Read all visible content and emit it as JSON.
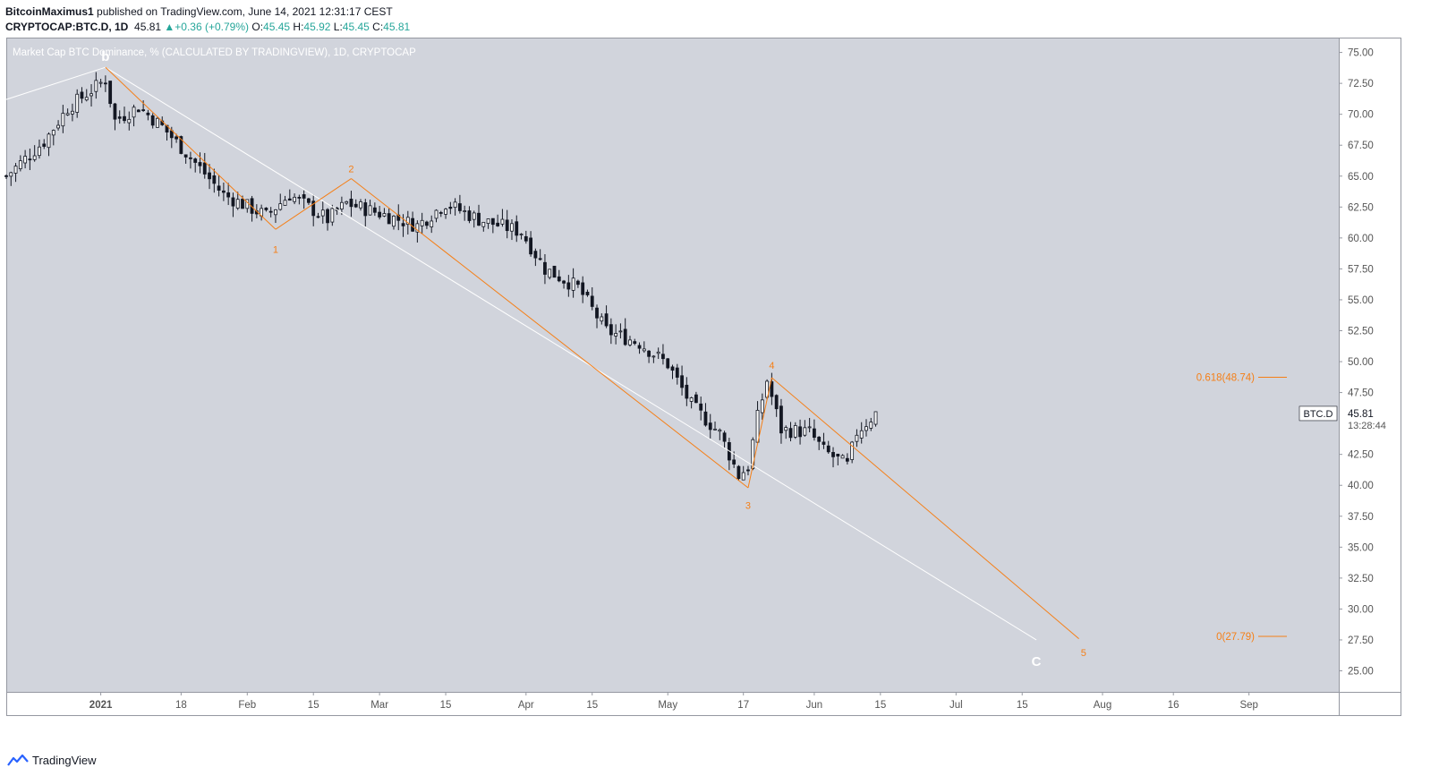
{
  "header": {
    "author": "BitcoinMaximus1",
    "published_text": "published on TradingView.com, June 14, 2021 12:31:17 CEST",
    "symbol": "CRYPTOCAP:BTC.D, 1D",
    "price": "45.81",
    "change": "+0.36 (+0.79%)",
    "o_label": "O:",
    "o_value": "45.45",
    "h_label": "H:",
    "h_value": "45.92",
    "l_label": "L:",
    "l_value": "45.45",
    "c_label": "C:",
    "c_value": "45.81",
    "up_arrow": "▲"
  },
  "footer": {
    "brand": "TradingView",
    "logo_icon": "tradingview-logo-icon"
  },
  "colors": {
    "background": "#d1d4dc",
    "page": "#ffffff",
    "candle": "#131722",
    "candle_up_fill": "#ffffff",
    "orange": "#f57f17",
    "white_line": "#ffffff",
    "green": "#26a69a"
  },
  "chart_data": {
    "type": "candlestick",
    "title": "Market Cap BTC Dominance, % (CALCULATED BY TRADINGVIEW), 1D, CRYPTOCAP",
    "symbol_tag": "BTC.D",
    "last_value": "45.81",
    "countdown": "13:28:44",
    "x_ticks": [
      {
        "label": "2021",
        "date": "2021-01-01"
      },
      {
        "label": "18",
        "date": "2021-01-18"
      },
      {
        "label": "Feb",
        "date": "2021-02-01"
      },
      {
        "label": "15",
        "date": "2021-02-15"
      },
      {
        "label": "Mar",
        "date": "2021-03-01"
      },
      {
        "label": "15",
        "date": "2021-03-15"
      },
      {
        "label": "Apr",
        "date": "2021-04-01"
      },
      {
        "label": "15",
        "date": "2021-04-15"
      },
      {
        "label": "May",
        "date": "2021-05-01"
      },
      {
        "label": "17",
        "date": "2021-05-17"
      },
      {
        "label": "Jun",
        "date": "2021-06-01"
      },
      {
        "label": "15",
        "date": "2021-06-15"
      },
      {
        "label": "Jul",
        "date": "2021-07-01"
      },
      {
        "label": "15",
        "date": "2021-07-15"
      },
      {
        "label": "Aug",
        "date": "2021-08-01"
      },
      {
        "label": "16",
        "date": "2021-08-16"
      },
      {
        "label": "Sep",
        "date": "2021-09-01"
      }
    ],
    "y_ticks": [
      "75.00",
      "72.50",
      "70.00",
      "67.50",
      "65.00",
      "62.50",
      "60.00",
      "57.50",
      "55.00",
      "52.50",
      "50.00",
      "47.50",
      "45.00",
      "42.50",
      "40.00",
      "37.50",
      "35.00",
      "32.50",
      "30.00",
      "27.50",
      "25.00"
    ],
    "ylim": [
      23.3,
      76.2
    ],
    "x_domain": [
      "2020-12-12",
      "2021-09-20"
    ],
    "close_path": [
      {
        "date": "2020-12-12",
        "value": 65.0
      },
      {
        "date": "2020-12-20",
        "value": 67.8
      },
      {
        "date": "2020-12-25",
        "value": 70.5
      },
      {
        "date": "2021-01-02",
        "value": 72.8
      },
      {
        "date": "2021-01-04",
        "value": 69.5
      },
      {
        "date": "2021-01-09",
        "value": 70.6
      },
      {
        "date": "2021-01-14",
        "value": 69.0
      },
      {
        "date": "2021-01-20",
        "value": 66.5
      },
      {
        "date": "2021-01-27",
        "value": 63.5
      },
      {
        "date": "2021-02-05",
        "value": 61.8
      },
      {
        "date": "2021-02-10",
        "value": 63.5
      },
      {
        "date": "2021-02-18",
        "value": 61.5
      },
      {
        "date": "2021-02-22",
        "value": 62.8
      },
      {
        "date": "2021-03-01",
        "value": 62.0
      },
      {
        "date": "2021-03-09",
        "value": 61.0
      },
      {
        "date": "2021-03-15",
        "value": 62.8
      },
      {
        "date": "2021-03-22",
        "value": 61.5
      },
      {
        "date": "2021-03-31",
        "value": 60.5
      },
      {
        "date": "2021-04-05",
        "value": 57.5
      },
      {
        "date": "2021-04-12",
        "value": 56.0
      },
      {
        "date": "2021-04-18",
        "value": 52.5
      },
      {
        "date": "2021-04-25",
        "value": 51.5
      },
      {
        "date": "2021-05-01",
        "value": 49.8
      },
      {
        "date": "2021-05-06",
        "value": 46.5
      },
      {
        "date": "2021-05-12",
        "value": 44.2
      },
      {
        "date": "2021-05-16",
        "value": 40.8
      },
      {
        "date": "2021-05-18",
        "value": 41.5
      },
      {
        "date": "2021-05-20",
        "value": 45.5
      },
      {
        "date": "2021-05-22",
        "value": 48.5
      },
      {
        "date": "2021-05-25",
        "value": 44.5
      },
      {
        "date": "2021-05-31",
        "value": 44.3
      },
      {
        "date": "2021-06-03",
        "value": 42.8
      },
      {
        "date": "2021-06-08",
        "value": 41.6
      },
      {
        "date": "2021-06-10",
        "value": 44.3
      },
      {
        "date": "2021-06-14",
        "value": 45.81
      }
    ],
    "wave_labels": [
      {
        "label": "b",
        "date": "2021-01-02",
        "value": 74.6,
        "color": "white"
      },
      {
        "label": "1",
        "date": "2021-02-07",
        "value": 59.1,
        "color": "orange"
      },
      {
        "label": "2",
        "date": "2021-02-23",
        "value": 65.6,
        "color": "orange"
      },
      {
        "label": "3",
        "date": "2021-05-18",
        "value": 38.4,
        "color": "orange"
      },
      {
        "label": "4",
        "date": "2021-05-23",
        "value": 49.7,
        "color": "orange"
      },
      {
        "label": "C",
        "date": "2021-07-18",
        "value": 25.7,
        "color": "white"
      },
      {
        "label": "5",
        "date": "2021-07-28",
        "value": 26.5,
        "color": "orange"
      }
    ],
    "orange_wave_lines": [
      {
        "from": {
          "date": "2021-01-02",
          "value": 73.8
        },
        "to": {
          "date": "2021-02-07",
          "value": 60.7
        }
      },
      {
        "from": {
          "date": "2021-02-07",
          "value": 60.7
        },
        "to": {
          "date": "2021-02-23",
          "value": 64.8
        }
      },
      {
        "from": {
          "date": "2021-02-23",
          "value": 64.8
        },
        "to": {
          "date": "2021-05-18",
          "value": 39.8
        }
      },
      {
        "from": {
          "date": "2021-05-18",
          "value": 39.8
        },
        "to": {
          "date": "2021-05-23",
          "value": 48.7
        }
      },
      {
        "from": {
          "date": "2021-05-23",
          "value": 48.7
        },
        "to": {
          "date": "2021-07-27",
          "value": 27.6
        }
      }
    ],
    "white_lines": [
      {
        "from": {
          "date": "2020-12-12",
          "value": 71.2
        },
        "to": {
          "date": "2021-01-02",
          "value": 73.8
        }
      },
      {
        "from": {
          "date": "2021-01-02",
          "value": 73.8
        },
        "to": {
          "date": "2021-07-18",
          "value": 27.5
        }
      }
    ],
    "fib_levels": [
      {
        "label": "0.618(48.74)",
        "value": 48.74
      },
      {
        "label": "0(27.79)",
        "value": 27.79
      }
    ]
  }
}
